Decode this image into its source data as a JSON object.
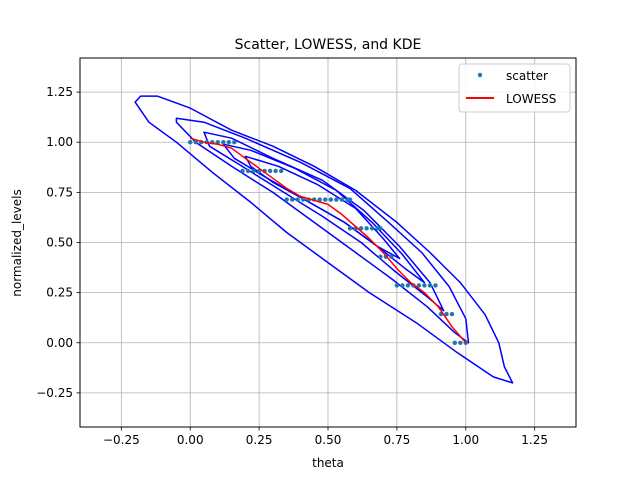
{
  "chart_data": {
    "type": "scatter",
    "title": "Scatter, LOWESS, and KDE",
    "xlabel": "theta",
    "ylabel": "normalized_levels",
    "xlim": [
      -0.4,
      1.4
    ],
    "ylim": [
      -0.42,
      1.42
    ],
    "xticks": [
      -0.25,
      0.0,
      0.25,
      0.5,
      0.75,
      1.0,
      1.25
    ],
    "xtick_labels": [
      "−0.25",
      "0.00",
      "0.25",
      "0.50",
      "0.75",
      "1.00",
      "1.25"
    ],
    "yticks": [
      -0.25,
      0.0,
      0.25,
      0.5,
      0.75,
      1.0,
      1.25
    ],
    "ytick_labels": [
      "−0.25",
      "0.00",
      "0.25",
      "0.50",
      "0.75",
      "1.00",
      "1.25"
    ],
    "grid": true,
    "legend_position": "top-right",
    "colors": {
      "scatter": "#1f77b4",
      "lowess": "#ff0000",
      "kde": "#0000ff",
      "grid": "#b0b0b0"
    },
    "series": [
      {
        "name": "scatter",
        "kind": "scatter",
        "points": [
          [
            0.0,
            1.0
          ],
          [
            0.02,
            1.0
          ],
          [
            0.04,
            1.0
          ],
          [
            0.06,
            1.0
          ],
          [
            0.08,
            1.0
          ],
          [
            0.1,
            1.0
          ],
          [
            0.12,
            1.0
          ],
          [
            0.14,
            1.0
          ],
          [
            0.16,
            1.0
          ],
          [
            0.19,
            0.857
          ],
          [
            0.21,
            0.857
          ],
          [
            0.23,
            0.857
          ],
          [
            0.25,
            0.857
          ],
          [
            0.27,
            0.857
          ],
          [
            0.29,
            0.857
          ],
          [
            0.31,
            0.857
          ],
          [
            0.33,
            0.857
          ],
          [
            0.35,
            0.714
          ],
          [
            0.37,
            0.714
          ],
          [
            0.39,
            0.714
          ],
          [
            0.41,
            0.714
          ],
          [
            0.43,
            0.714
          ],
          [
            0.45,
            0.714
          ],
          [
            0.47,
            0.714
          ],
          [
            0.49,
            0.714
          ],
          [
            0.51,
            0.714
          ],
          [
            0.53,
            0.714
          ],
          [
            0.55,
            0.714
          ],
          [
            0.57,
            0.714
          ],
          [
            0.58,
            0.714
          ],
          [
            0.58,
            0.571
          ],
          [
            0.6,
            0.571
          ],
          [
            0.62,
            0.571
          ],
          [
            0.64,
            0.571
          ],
          [
            0.66,
            0.571
          ],
          [
            0.68,
            0.571
          ],
          [
            0.69,
            0.571
          ],
          [
            0.69,
            0.429
          ],
          [
            0.71,
            0.429
          ],
          [
            0.73,
            0.429
          ],
          [
            0.75,
            0.286
          ],
          [
            0.77,
            0.286
          ],
          [
            0.79,
            0.286
          ],
          [
            0.81,
            0.286
          ],
          [
            0.83,
            0.286
          ],
          [
            0.85,
            0.286
          ],
          [
            0.87,
            0.286
          ],
          [
            0.89,
            0.286
          ],
          [
            0.91,
            0.143
          ],
          [
            0.93,
            0.143
          ],
          [
            0.95,
            0.143
          ],
          [
            0.96,
            0.0
          ],
          [
            0.98,
            0.0
          ],
          [
            1.0,
            0.0
          ]
        ]
      },
      {
        "name": "LOWESS",
        "kind": "line",
        "x": [
          0.0,
          0.05,
          0.1,
          0.15,
          0.2,
          0.25,
          0.3,
          0.35,
          0.4,
          0.45,
          0.5,
          0.55,
          0.6,
          0.65,
          0.7,
          0.75,
          0.8,
          0.85,
          0.9,
          0.95,
          1.0
        ],
        "y": [
          1.02,
          1.0,
          0.99,
          0.97,
          0.92,
          0.87,
          0.82,
          0.77,
          0.73,
          0.71,
          0.69,
          0.64,
          0.58,
          0.52,
          0.45,
          0.37,
          0.3,
          0.25,
          0.18,
          0.08,
          0.0
        ]
      }
    ],
    "kde_contours": [
      [
        [
          -0.18,
          1.23
        ],
        [
          -0.12,
          1.23
        ],
        [
          0.0,
          1.17
        ],
        [
          0.15,
          1.06
        ],
        [
          0.3,
          0.98
        ],
        [
          0.45,
          0.88
        ],
        [
          0.6,
          0.76
        ],
        [
          0.75,
          0.6
        ],
        [
          0.87,
          0.45
        ],
        [
          0.98,
          0.3
        ],
        [
          1.07,
          0.14
        ],
        [
          1.12,
          0.0
        ],
        [
          1.14,
          -0.12
        ],
        [
          1.17,
          -0.2
        ],
        [
          1.1,
          -0.17
        ],
        [
          0.97,
          -0.05
        ],
        [
          0.82,
          0.1
        ],
        [
          0.65,
          0.25
        ],
        [
          0.5,
          0.4
        ],
        [
          0.35,
          0.55
        ],
        [
          0.22,
          0.7
        ],
        [
          0.08,
          0.85
        ],
        [
          -0.05,
          1.0
        ],
        [
          -0.15,
          1.1
        ],
        [
          -0.2,
          1.2
        ],
        [
          -0.18,
          1.23
        ]
      ],
      [
        [
          -0.05,
          1.12
        ],
        [
          0.05,
          1.1
        ],
        [
          0.2,
          1.02
        ],
        [
          0.4,
          0.9
        ],
        [
          0.58,
          0.77
        ],
        [
          0.72,
          0.6
        ],
        [
          0.84,
          0.45
        ],
        [
          0.94,
          0.28
        ],
        [
          1.0,
          0.12
        ],
        [
          1.01,
          0.0
        ],
        [
          0.96,
          0.05
        ],
        [
          0.86,
          0.18
        ],
        [
          0.73,
          0.32
        ],
        [
          0.6,
          0.45
        ],
        [
          0.45,
          0.6
        ],
        [
          0.3,
          0.75
        ],
        [
          0.15,
          0.88
        ],
        [
          0.02,
          1.0
        ],
        [
          -0.05,
          1.1
        ],
        [
          -0.05,
          1.12
        ]
      ],
      [
        [
          0.05,
          1.05
        ],
        [
          0.15,
          1.02
        ],
        [
          0.3,
          0.92
        ],
        [
          0.48,
          0.81
        ],
        [
          0.63,
          0.66
        ],
        [
          0.76,
          0.48
        ],
        [
          0.87,
          0.3
        ],
        [
          0.92,
          0.16
        ],
        [
          0.85,
          0.24
        ],
        [
          0.74,
          0.36
        ],
        [
          0.62,
          0.5
        ],
        [
          0.48,
          0.63
        ],
        [
          0.34,
          0.75
        ],
        [
          0.2,
          0.87
        ],
        [
          0.07,
          0.98
        ],
        [
          0.05,
          1.05
        ]
      ],
      [
        [
          0.12,
          0.99
        ],
        [
          0.22,
          0.96
        ],
        [
          0.38,
          0.87
        ],
        [
          0.53,
          0.76
        ],
        [
          0.66,
          0.6
        ],
        [
          0.77,
          0.44
        ],
        [
          0.85,
          0.3
        ],
        [
          0.78,
          0.37
        ],
        [
          0.68,
          0.48
        ],
        [
          0.56,
          0.6
        ],
        [
          0.42,
          0.71
        ],
        [
          0.28,
          0.82
        ],
        [
          0.16,
          0.92
        ],
        [
          0.12,
          0.99
        ]
      ],
      [
        [
          0.2,
          0.93
        ],
        [
          0.32,
          0.88
        ],
        [
          0.46,
          0.79
        ],
        [
          0.6,
          0.67
        ],
        [
          0.7,
          0.52
        ],
        [
          0.76,
          0.42
        ],
        [
          0.68,
          0.48
        ],
        [
          0.56,
          0.6
        ],
        [
          0.42,
          0.71
        ],
        [
          0.3,
          0.8
        ],
        [
          0.22,
          0.88
        ],
        [
          0.2,
          0.93
        ]
      ]
    ]
  }
}
